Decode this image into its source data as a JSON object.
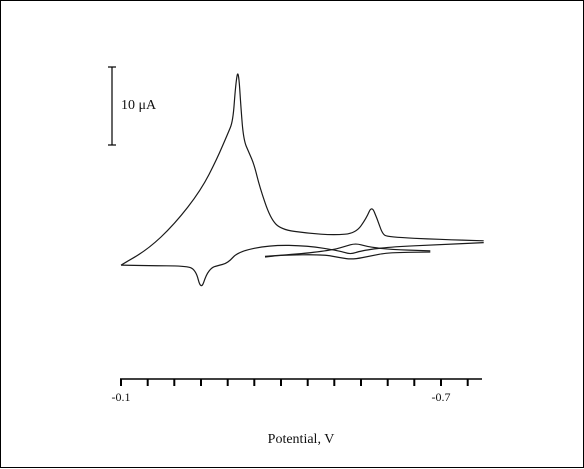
{
  "chart_data": {
    "type": "line",
    "title": "",
    "xlabel": "Potential, V",
    "ylabel": "",
    "x_direction": "decreasing-left-to-right",
    "xlim": [
      -0.1,
      -0.78
    ],
    "x_ticks_major_labeled": [
      {
        "value": -0.1,
        "label": "-0.1"
      },
      {
        "value": -0.7,
        "label": "-0.7"
      }
    ],
    "x_ticks_minor_step": 0.05,
    "scale_bar": {
      "label": "10 μA",
      "value_uA": 10
    },
    "grid": false,
    "legend": "none",
    "series": [
      {
        "points": [
          [
            -0.1,
            -4.5
          ],
          [
            -0.15,
            -2.0
          ],
          [
            -0.2,
            2.0
          ],
          [
            -0.25,
            7.5
          ],
          [
            -0.28,
            12.5
          ],
          [
            -0.3,
            16.5
          ],
          [
            -0.31,
            18.5
          ],
          [
            -0.315,
            24.5
          ],
          [
            -0.32,
            27.0
          ],
          [
            -0.325,
            20.5
          ],
          [
            -0.33,
            15.5
          ],
          [
            -0.34,
            13.5
          ],
          [
            -0.35,
            11.5
          ],
          [
            -0.36,
            8.0
          ],
          [
            -0.38,
            3.0
          ],
          [
            -0.4,
            1.2
          ],
          [
            -0.45,
            0.6
          ],
          [
            -0.5,
            0.3
          ],
          [
            -0.54,
            0.6
          ],
          [
            -0.56,
            3.0
          ],
          [
            -0.57,
            5.0
          ],
          [
            -0.58,
            3.0
          ],
          [
            -0.59,
            0.5
          ],
          [
            -0.6,
            0.0
          ],
          [
            -0.7,
            -0.4
          ],
          [
            -0.78,
            -0.6
          ]
        ]
      },
      {
        "points": [
          [
            -0.78,
            -0.9
          ],
          [
            -0.7,
            -1.2
          ],
          [
            -0.6,
            -1.6
          ],
          [
            -0.55,
            -2.2
          ],
          [
            -0.53,
            -2.8
          ],
          [
            -0.51,
            -2.2
          ],
          [
            -0.45,
            -1.4
          ],
          [
            -0.38,
            -1.3
          ],
          [
            -0.32,
            -2.3
          ],
          [
            -0.3,
            -4.2
          ],
          [
            -0.28,
            -4.6
          ],
          [
            -0.27,
            -4.9
          ],
          [
            -0.26,
            -6.0
          ],
          [
            -0.25,
            -8.5
          ],
          [
            -0.24,
            -5.2
          ],
          [
            -0.22,
            -4.6
          ],
          [
            -0.15,
            -4.6
          ],
          [
            -0.1,
            -4.5
          ]
        ]
      },
      {
        "points": [
          [
            -0.37,
            -3.1
          ],
          [
            -0.45,
            -2.6
          ],
          [
            -0.5,
            -2.0
          ],
          [
            -0.52,
            -1.5
          ],
          [
            -0.54,
            -1.0
          ],
          [
            -0.56,
            -1.5
          ],
          [
            -0.6,
            -2.0
          ],
          [
            -0.68,
            -2.2
          ]
        ]
      },
      {
        "points": [
          [
            -0.68,
            -2.4
          ],
          [
            -0.6,
            -2.5
          ],
          [
            -0.57,
            -3.0
          ],
          [
            -0.535,
            -3.6
          ],
          [
            -0.51,
            -3.3
          ],
          [
            -0.48,
            -2.8
          ],
          [
            -0.4,
            -2.9
          ],
          [
            -0.37,
            -3.2
          ]
        ]
      }
    ]
  }
}
